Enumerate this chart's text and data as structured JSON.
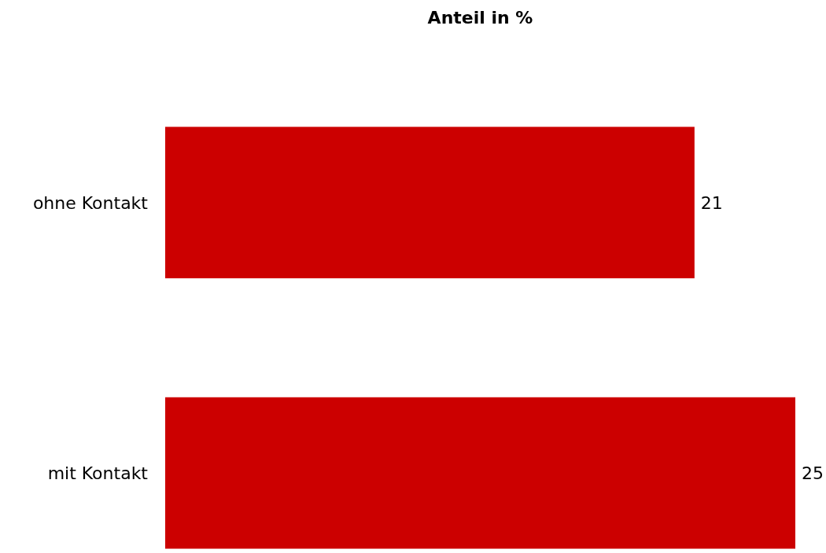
{
  "chart_data": {
    "type": "bar",
    "orientation": "horizontal",
    "title": "Anteil in %",
    "categories": [
      "ohne Kontakt",
      "mit Kontakt"
    ],
    "values": [
      21,
      25
    ],
    "color": "#cc0000",
    "data_labels": true
  }
}
